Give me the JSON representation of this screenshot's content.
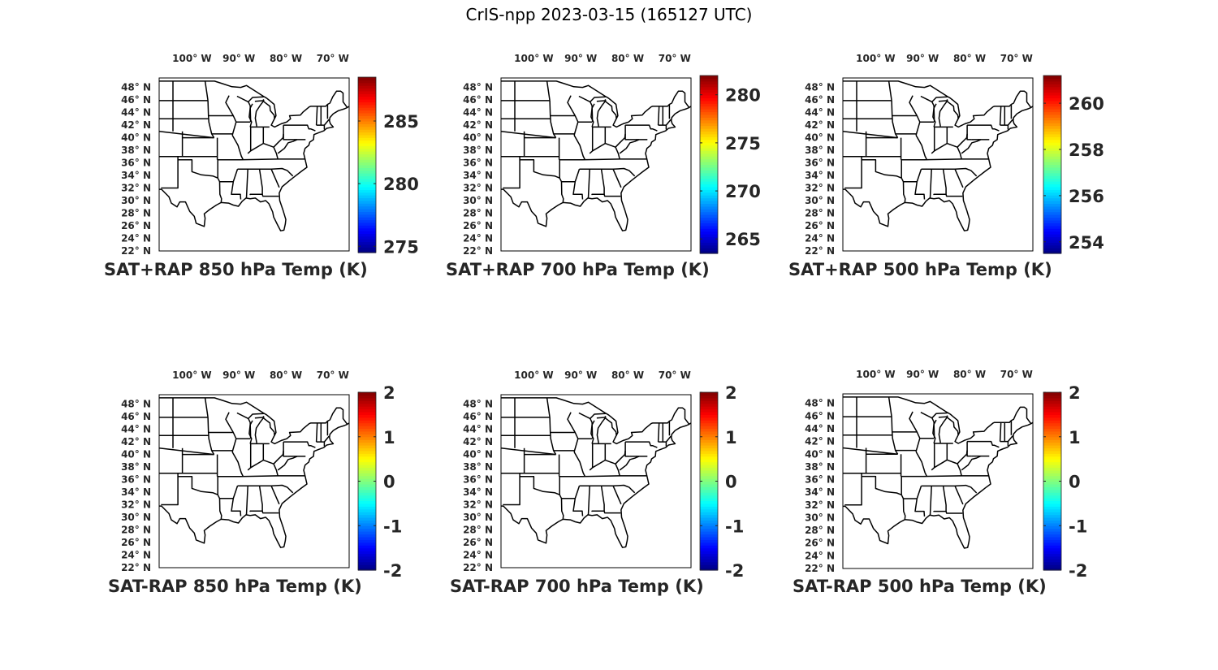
{
  "figure_title": "CrIS-npp 2023-03-15 (165127 UTC)",
  "longitude_labels": [
    "100° W",
    "90° W",
    "80° W",
    "70° W"
  ],
  "latitude_labels": [
    "48° N",
    "46° N",
    "44° N",
    "42° N",
    "40° N",
    "38° N",
    "36° N",
    "34° N",
    "32° N",
    "30° N",
    "28° N",
    "26° N",
    "24° N",
    "22° N"
  ],
  "map_extent": {
    "lon": [
      -107,
      -66.5
    ],
    "lat": [
      22,
      49.5
    ]
  },
  "colormap": "jet",
  "panels": [
    {
      "title": "SAT+RAP 850 hPa Temp (K)",
      "colorbar": {
        "min": 274.5,
        "max": 288.5,
        "ticks": [
          "275",
          "280",
          "285"
        ]
      }
    },
    {
      "title": "SAT+RAP 700 hPa Temp (K)",
      "colorbar": {
        "min": 263.5,
        "max": 282,
        "ticks": [
          "265",
          "270",
          "275",
          "280"
        ]
      }
    },
    {
      "title": "SAT+RAP 500 hPa Temp (K)",
      "colorbar": {
        "min": 253.5,
        "max": 261.2,
        "ticks": [
          "254",
          "256",
          "258",
          "260"
        ]
      }
    },
    {
      "title": "SAT-RAP 850 hPa Temp (K)",
      "colorbar": {
        "min": -2,
        "max": 2,
        "ticks": [
          "-2",
          "-1",
          "0",
          "1",
          "2"
        ]
      }
    },
    {
      "title": "SAT-RAP 700 hPa Temp (K)",
      "colorbar": {
        "min": -2,
        "max": 2,
        "ticks": [
          "-2",
          "-1",
          "0",
          "1",
          "2"
        ]
      }
    },
    {
      "title": "SAT-RAP 500 hPa Temp (K)",
      "colorbar": {
        "min": -2,
        "max": 2,
        "ticks": [
          "-2",
          "-1",
          "0",
          "1",
          "2"
        ]
      }
    }
  ]
}
